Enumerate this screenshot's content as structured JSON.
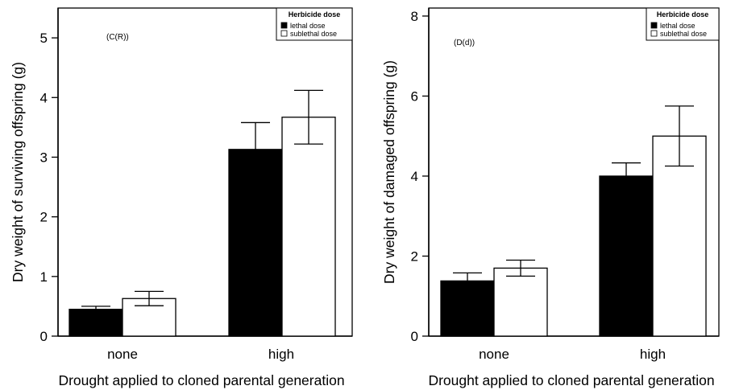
{
  "chart_data": [
    {
      "type": "bar",
      "panel_label": "(C(R))",
      "title": "",
      "xlabel": "Drought applied to cloned parental generation",
      "ylabel": "Dry weight of surviving offspring (g)",
      "categories": [
        "none",
        "high"
      ],
      "ylim": [
        0,
        5.5
      ],
      "yticks": [
        "0",
        "1",
        "2",
        "3",
        "4",
        "5"
      ],
      "legend": {
        "title": "Herbicide dose",
        "placement": "top-right",
        "entries": [
          "lethal dose",
          "sublethal dose"
        ]
      },
      "series": [
        {
          "name": "lethal dose",
          "color": "#000000",
          "values": [
            0.45,
            3.13
          ],
          "err_low": [
            0.4,
            2.68
          ],
          "err_high": [
            0.5,
            3.58
          ]
        },
        {
          "name": "sublethal dose",
          "color": "#ffffff",
          "values": [
            0.63,
            3.67
          ],
          "err_low": [
            0.51,
            3.22
          ],
          "err_high": [
            0.75,
            4.12
          ]
        }
      ]
    },
    {
      "type": "bar",
      "panel_label": "(D(d))",
      "title": "",
      "xlabel": "Drought applied to cloned parental generation",
      "ylabel": "Dry weight of damaged offspring (g)",
      "categories": [
        "none",
        "high"
      ],
      "ylim": [
        0,
        8.2
      ],
      "yticks": [
        "0",
        "2",
        "4",
        "6",
        "8"
      ],
      "legend": {
        "title": "Herbicide dose",
        "placement": "top-right",
        "entries": [
          "lethal dose",
          "sublethal dose"
        ]
      },
      "series": [
        {
          "name": "lethal dose",
          "color": "#000000",
          "values": [
            1.38,
            4.0
          ],
          "err_low": [
            1.2,
            3.67
          ],
          "err_high": [
            1.58,
            4.33
          ]
        },
        {
          "name": "sublethal dose",
          "color": "#ffffff",
          "values": [
            1.7,
            5.0
          ],
          "err_low": [
            1.5,
            4.25
          ],
          "err_high": [
            1.9,
            5.75
          ]
        }
      ]
    }
  ]
}
